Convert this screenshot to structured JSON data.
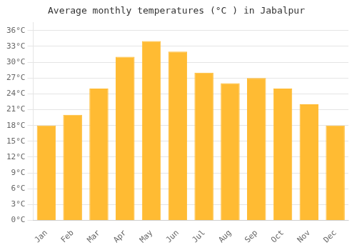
{
  "chart_data": {
    "type": "bar",
    "title": "Average monthly temperatures (°C ) in Jabalpur",
    "categories": [
      "Jan",
      "Feb",
      "Mar",
      "Apr",
      "May",
      "Jun",
      "Jul",
      "Aug",
      "Sep",
      "Oct",
      "Nov",
      "Dec"
    ],
    "values": [
      18,
      20,
      25,
      31,
      34,
      32,
      28,
      26,
      27,
      25,
      22,
      18
    ],
    "color": "#FFBB33",
    "ylim": [
      0,
      37.5
    ],
    "yticks": [
      {
        "value": 0,
        "label": "0°C"
      },
      {
        "value": 3,
        "label": "3°C"
      },
      {
        "value": 6,
        "label": "6°C"
      },
      {
        "value": 9,
        "label": "9°C"
      },
      {
        "value": 12,
        "label": "12°C"
      },
      {
        "value": 15,
        "label": "15°C"
      },
      {
        "value": 18,
        "label": "18°C"
      },
      {
        "value": 21,
        "label": "21°C"
      },
      {
        "value": 24,
        "label": "24°C"
      },
      {
        "value": 27,
        "label": "27°C"
      },
      {
        "value": 30,
        "label": "30°C"
      },
      {
        "value": 33,
        "label": "33°C"
      },
      {
        "value": 36,
        "label": "36°C"
      }
    ],
    "grid": true
  }
}
